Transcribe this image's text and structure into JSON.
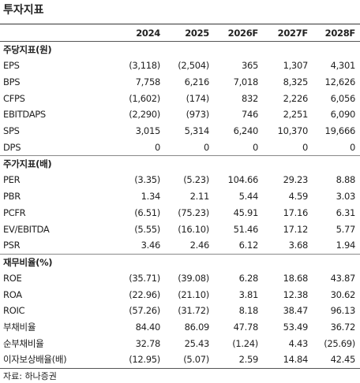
{
  "header": {
    "title": "투자지표"
  },
  "table": {
    "columns": [
      "2024",
      "2025",
      "2026F",
      "2027F",
      "2028F"
    ],
    "sections": [
      {
        "title": "주당지표(원)",
        "rows": [
          {
            "label": "EPS",
            "values": [
              "(3,118)",
              "(2,504)",
              "365",
              "1,307",
              "4,301"
            ]
          },
          {
            "label": "BPS",
            "values": [
              "7,758",
              "6,216",
              "7,018",
              "8,325",
              "12,626"
            ]
          },
          {
            "label": "CFPS",
            "values": [
              "(1,602)",
              "(174)",
              "832",
              "2,226",
              "6,056"
            ]
          },
          {
            "label": "EBITDAPS",
            "values": [
              "(2,290)",
              "(973)",
              "746",
              "2,251",
              "6,090"
            ]
          },
          {
            "label": "SPS",
            "values": [
              "3,015",
              "5,314",
              "6,240",
              "10,370",
              "19,666"
            ]
          },
          {
            "label": "DPS",
            "values": [
              "0",
              "0",
              "0",
              "0",
              "0"
            ]
          }
        ]
      },
      {
        "title": "주가지표(배)",
        "rows": [
          {
            "label": "PER",
            "values": [
              "(3.35)",
              "(5.23)",
              "104.66",
              "29.23",
              "8.88"
            ]
          },
          {
            "label": "PBR",
            "values": [
              "1.34",
              "2.11",
              "5.44",
              "4.59",
              "3.03"
            ]
          },
          {
            "label": "PCFR",
            "values": [
              "(6.51)",
              "(75.23)",
              "45.91",
              "17.16",
              "6.31"
            ]
          },
          {
            "label": "EV/EBITDA",
            "values": [
              "(5.55)",
              "(16.10)",
              "51.46",
              "17.12",
              "5.77"
            ]
          },
          {
            "label": "PSR",
            "values": [
              "3.46",
              "2.46",
              "6.12",
              "3.68",
              "1.94"
            ]
          }
        ]
      },
      {
        "title": "재무비율(%)",
        "rows": [
          {
            "label": "ROE",
            "values": [
              "(35.71)",
              "(39.08)",
              "6.28",
              "18.68",
              "43.87"
            ]
          },
          {
            "label": "ROA",
            "values": [
              "(22.96)",
              "(21.10)",
              "3.81",
              "12.38",
              "30.62"
            ]
          },
          {
            "label": "ROIC",
            "values": [
              "(57.26)",
              "(31.72)",
              "8.18",
              "38.47",
              "96.13"
            ]
          },
          {
            "label": "부채비율",
            "values": [
              "84.40",
              "86.09",
              "47.78",
              "53.49",
              "36.72"
            ]
          },
          {
            "label": "순부채비율",
            "values": [
              "32.78",
              "25.43",
              "(1.24)",
              "4.43",
              "(25.69)"
            ]
          },
          {
            "label": "이자보상배율(배)",
            "values": [
              "(12.95)",
              "(5.07)",
              "2.59",
              "14.84",
              "42.45"
            ]
          }
        ]
      }
    ]
  },
  "footer": {
    "source": "자료: 하나증권"
  }
}
